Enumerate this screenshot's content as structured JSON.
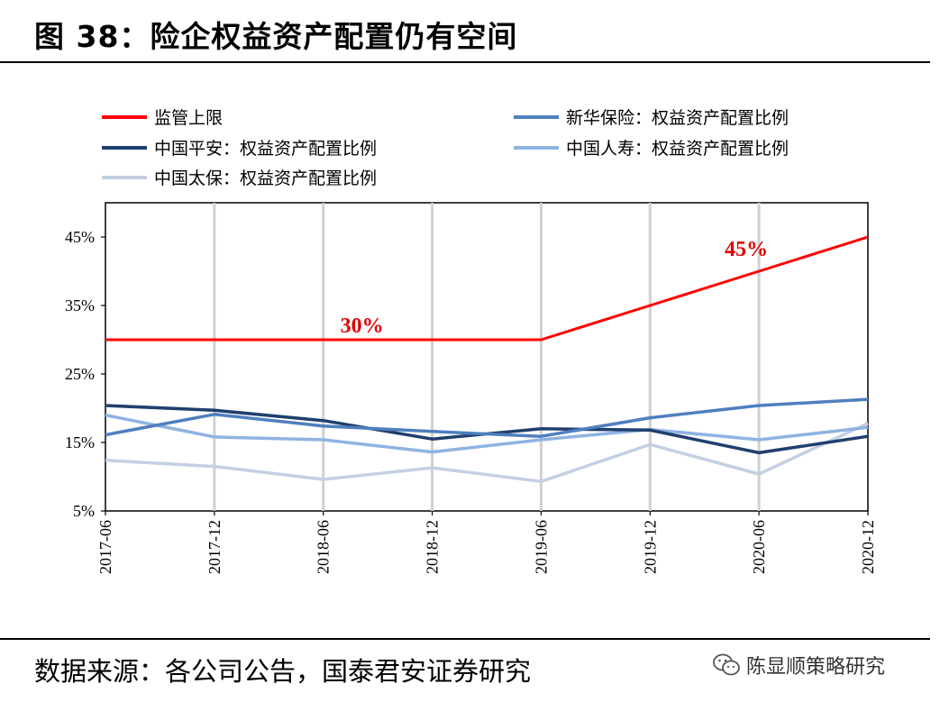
{
  "header": {
    "title": "图 38：险企权益资产配置仍有空间"
  },
  "footer": {
    "source": "数据来源：各公司公告，国泰君安证券研究",
    "watermark": "陈显顺策略研究"
  },
  "chart_data": {
    "type": "line",
    "title": "",
    "xlabel": "",
    "ylabel": "",
    "categories": [
      "2017-06",
      "2017-12",
      "2018-06",
      "2018-12",
      "2019-06",
      "2019-12",
      "2020-06",
      "2020-12"
    ],
    "y_ticks": [
      "5%",
      "15%",
      "25%",
      "35%",
      "45%"
    ],
    "ylim": [
      5,
      50
    ],
    "grid": "vertical",
    "legend_placement": "top",
    "series": [
      {
        "name": "监管上限",
        "color": "#ff0000",
        "width": 3,
        "values": [
          30,
          30,
          30,
          30,
          30,
          35,
          40,
          45
        ]
      },
      {
        "name": "新华保险：权益资产配置比例",
        "color": "#4f7fbf",
        "width": 3.5,
        "values": [
          16.1,
          19.1,
          17.4,
          16.6,
          15.9,
          18.6,
          20.4,
          21.3
        ]
      },
      {
        "name": "中国平安：权益资产配置比例",
        "color": "#1f3f6e",
        "width": 3.5,
        "values": [
          20.4,
          19.7,
          18.2,
          15.5,
          17.0,
          16.8,
          13.5,
          15.9
        ]
      },
      {
        "name": "中国人寿：权益资产配置比例",
        "color": "#8fb3e1",
        "width": 3.5,
        "values": [
          19.0,
          15.8,
          15.4,
          13.6,
          15.4,
          16.9,
          15.4,
          17.2
        ]
      },
      {
        "name": "中国太保：权益资产配置比例",
        "color": "#c3d0e3",
        "width": 3.5,
        "values": [
          12.4,
          11.5,
          9.6,
          11.3,
          9.3,
          14.7,
          10.4,
          17.8
        ]
      }
    ],
    "annotations": [
      {
        "text": "30%",
        "series": 0,
        "x": 3,
        "y": 30,
        "color": "#e00000"
      },
      {
        "text": "45%",
        "series": 0,
        "x": 6,
        "y": 45,
        "color": "#e00000"
      }
    ]
  }
}
